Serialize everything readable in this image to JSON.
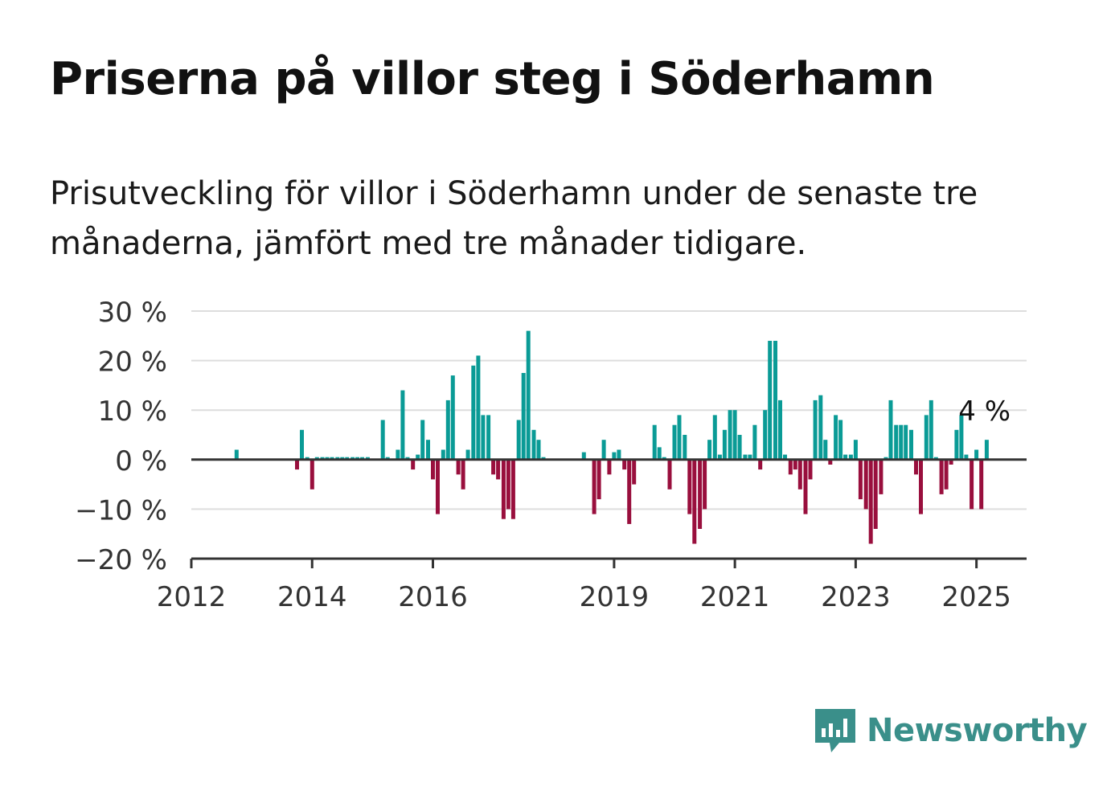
{
  "title": "Priserna på villor steg i Söderhamn",
  "subtitle": "Prisutveckling för villor i Söderhamn under de senaste tre månaderna, jämfört med tre månader tidigare.",
  "brand": {
    "name": "Newsworthy",
    "icon": "newsworthy-logo-icon"
  },
  "colors": {
    "positive": "#0a9b96",
    "negative": "#990f3d",
    "grid": "#dddddd",
    "axis": "#333333",
    "text": "#333333"
  },
  "chart_data": {
    "type": "bar",
    "title": "",
    "xlabel": "",
    "ylabel": "",
    "ylim": [
      -20,
      30
    ],
    "yticks": [
      30,
      20,
      10,
      0,
      -10,
      -20
    ],
    "ytick_labels": [
      "30 %",
      "20 %",
      "10 %",
      "0 %",
      "−10 %",
      "−20 %"
    ],
    "xlim": [
      2012.0,
      2025.83
    ],
    "xticks": [
      2012,
      2014,
      2016,
      2019,
      2021,
      2023,
      2025
    ],
    "xtick_labels": [
      "2012",
      "2014",
      "2016",
      "2019",
      "2021",
      "2023",
      "2025"
    ],
    "grid": true,
    "annotation": {
      "text": "4 %",
      "x": 2025.17,
      "y": 4
    },
    "x": [
      2012.75,
      2013.75,
      2013.83,
      2013.92,
      2014.0,
      2014.08,
      2014.17,
      2014.25,
      2014.33,
      2014.42,
      2014.5,
      2014.58,
      2014.67,
      2014.75,
      2014.83,
      2014.92,
      2015.17,
      2015.25,
      2015.42,
      2015.5,
      2015.58,
      2015.67,
      2015.75,
      2015.83,
      2015.92,
      2016.0,
      2016.08,
      2016.17,
      2016.25,
      2016.33,
      2016.42,
      2016.5,
      2016.58,
      2016.67,
      2016.75,
      2016.83,
      2016.92,
      2017.0,
      2017.08,
      2017.17,
      2017.25,
      2017.33,
      2017.42,
      2017.5,
      2017.58,
      2017.67,
      2017.75,
      2017.83,
      2018.5,
      2018.67,
      2018.75,
      2018.83,
      2018.92,
      2019.0,
      2019.08,
      2019.17,
      2019.25,
      2019.33,
      2019.67,
      2019.75,
      2019.83,
      2019.92,
      2020.0,
      2020.08,
      2020.17,
      2020.25,
      2020.33,
      2020.42,
      2020.5,
      2020.58,
      2020.67,
      2020.75,
      2020.83,
      2020.92,
      2021.0,
      2021.08,
      2021.17,
      2021.25,
      2021.33,
      2021.42,
      2021.5,
      2021.58,
      2021.67,
      2021.75,
      2021.83,
      2021.92,
      2022.0,
      2022.08,
      2022.17,
      2022.25,
      2022.33,
      2022.42,
      2022.5,
      2022.58,
      2022.67,
      2022.75,
      2022.83,
      2022.92,
      2023.0,
      2023.08,
      2023.17,
      2023.25,
      2023.33,
      2023.42,
      2023.5,
      2023.58,
      2023.67,
      2023.75,
      2023.83,
      2023.92,
      2024.0,
      2024.08,
      2024.17,
      2024.25,
      2024.33,
      2024.42,
      2024.5,
      2024.58,
      2024.67,
      2024.75,
      2024.83,
      2024.92,
      2025.0,
      2025.08,
      2025.17
    ],
    "values": [
      2,
      -2,
      6,
      0.5,
      -6,
      0.5,
      0.5,
      0.5,
      0.5,
      0.5,
      0.5,
      0.5,
      0.5,
      0.5,
      0.5,
      0.5,
      8,
      0.5,
      2,
      14,
      0.5,
      -2,
      1,
      8,
      4,
      -4,
      -11,
      2,
      12,
      17,
      -3,
      -6,
      2,
      19,
      21,
      9,
      9,
      -3,
      -4,
      -12,
      -10,
      -12,
      8,
      17.5,
      26,
      6,
      4,
      0.5,
      1.5,
      -11,
      -8,
      4,
      -3,
      1.5,
      2,
      -2,
      -13,
      -5,
      7,
      2.5,
      0.5,
      -6,
      7,
      9,
      5,
      -11,
      -17,
      -14,
      -10,
      4,
      9,
      1,
      6,
      10,
      10,
      5,
      1,
      1,
      7,
      -2,
      10,
      24,
      24,
      12,
      1,
      -3,
      -2,
      -6,
      -11,
      -4,
      12,
      13,
      4,
      -1,
      9,
      8,
      1,
      1,
      4,
      -8,
      -10,
      -17,
      -14,
      -7,
      0.5,
      12,
      7,
      7,
      7,
      6,
      -3,
      -11,
      9,
      12,
      0.5,
      -7,
      -6,
      -1,
      6,
      9,
      1,
      -10,
      2,
      -10,
      4
    ]
  }
}
